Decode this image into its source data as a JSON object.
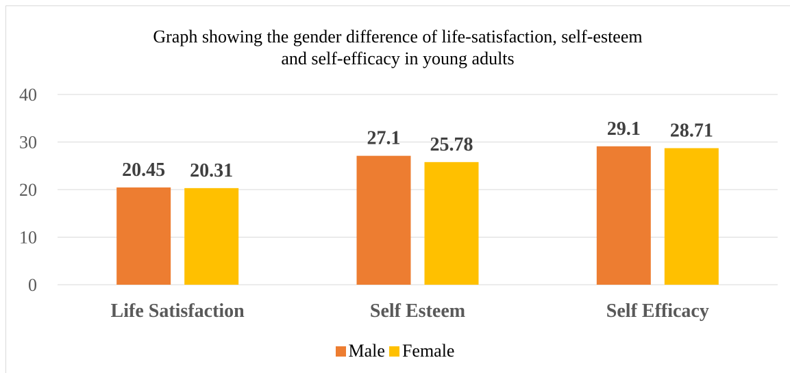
{
  "chart_data": {
    "type": "bar",
    "title_lines": [
      "Graph showing the gender difference of life-satisfaction, self-esteem",
      "and self-efficacy in young adults"
    ],
    "categories": [
      "Life Satisfaction",
      "Self Esteem",
      "Self Efficacy"
    ],
    "series": [
      {
        "name": "Male",
        "color": "#ED7D31",
        "values": [
          20.45,
          27.1,
          29.1
        ],
        "labels": [
          "20.45",
          "27.1",
          "29.1"
        ]
      },
      {
        "name": "Female",
        "color": "#FFC000",
        "values": [
          20.31,
          25.78,
          28.71
        ],
        "labels": [
          "20.31",
          "25.78",
          "28.71"
        ]
      }
    ],
    "yticks": [
      "0",
      "10",
      "20",
      "30",
      "40"
    ],
    "ylim": [
      0,
      40
    ],
    "grid": true,
    "legend_position": "bottom"
  }
}
